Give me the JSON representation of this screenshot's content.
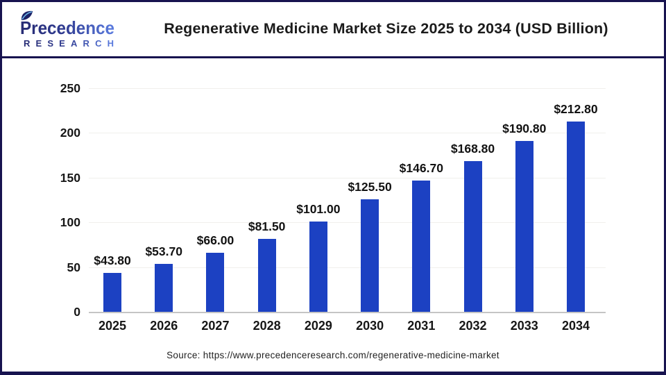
{
  "header": {
    "logo": {
      "brand": "Precedence",
      "sub": "RESEARCH"
    },
    "title": "Regenerative Medicine Market Size 2025 to 2034 (USD Billion)"
  },
  "chart_data": {
    "type": "bar",
    "title": "Regenerative Medicine Market Size 2025 to 2034 (USD Billion)",
    "categories": [
      "2025",
      "2026",
      "2027",
      "2028",
      "2029",
      "2030",
      "2031",
      "2032",
      "2033",
      "2034"
    ],
    "values": [
      43.8,
      53.7,
      66.0,
      81.5,
      101.0,
      125.5,
      146.7,
      168.8,
      190.8,
      212.8
    ],
    "value_labels": [
      "$43.80",
      "$53.70",
      "$66.00",
      "$81.50",
      "$101.00",
      "$125.50",
      "$146.70",
      "$168.80",
      "$190.80",
      "$212.80"
    ],
    "xlabel": "",
    "ylabel": "",
    "ylim": [
      0,
      250
    ],
    "yticks": [
      0,
      50,
      100,
      150,
      200,
      250
    ],
    "grid": true,
    "legend": "none",
    "bar_color": "#1c41c2"
  },
  "colors": {
    "frame_border": "#17134f",
    "bar": "#1c41c2",
    "gridline": "#f0efec",
    "axis_line": "#c5c5c5",
    "logo_dark": "#272c74",
    "logo_light": "#5b7ce0"
  },
  "footer": {
    "source": "Source: https://www.precedenceresearch.com/regenerative-medicine-market"
  }
}
